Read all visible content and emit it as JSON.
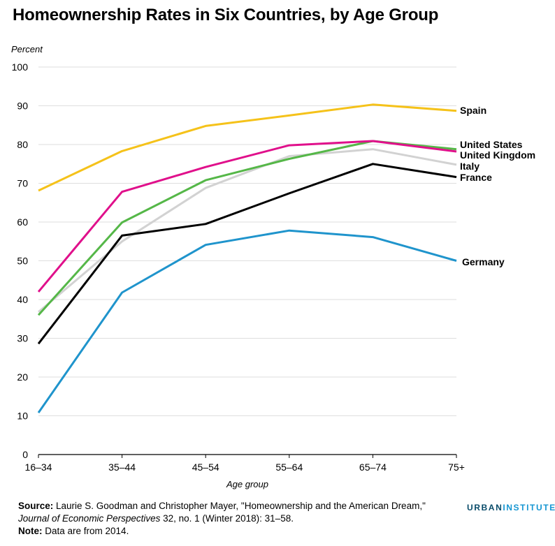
{
  "title": "Homeownership Rates in Six Countries, by Age Group",
  "chart_data": {
    "type": "line",
    "ylabel": "Percent",
    "xlabel": "Age group",
    "categories": [
      "16–34",
      "35–44",
      "45–54",
      "55–64",
      "65–74",
      "75+"
    ],
    "ylim": [
      0,
      100
    ],
    "yticks": [
      0,
      10,
      20,
      30,
      40,
      50,
      60,
      70,
      80,
      90,
      100
    ],
    "grid": true,
    "series": [
      {
        "name": "Germany",
        "color": "#1f94cc",
        "values": [
          10.8,
          41.8,
          54.1,
          57.8,
          56.1,
          50.0
        ]
      },
      {
        "name": "Italy",
        "color": "#d2d2d2",
        "values": [
          36.8,
          55.0,
          68.8,
          77.0,
          78.8,
          74.8
        ]
      },
      {
        "name": "France",
        "color": "#000000",
        "values": [
          28.6,
          56.5,
          59.5,
          67.4,
          75.0,
          71.6
        ]
      },
      {
        "name": "United Kingdom",
        "color": "#55b748",
        "values": [
          36.0,
          59.9,
          70.8,
          76.3,
          80.9,
          78.8
        ]
      },
      {
        "name": "United States",
        "color": "#e0108b",
        "values": [
          42.0,
          67.8,
          74.2,
          79.8,
          80.9,
          78.2
        ]
      },
      {
        "name": "Spain",
        "color": "#f5c21a",
        "values": [
          68.1,
          78.3,
          84.8,
          87.5,
          90.3,
          88.7
        ]
      }
    ]
  },
  "footer": {
    "source_label": "Source:",
    "source_text": " Laurie S. Goodman and Christopher Mayer, \"Homeownership and the American Dream,\"",
    "journal": "Journal of Economic Perspectives",
    "journal_rest": " 32, no. 1 (Winter 2018): 31–58.",
    "note_label": "Note:",
    "note_text": " Data are from 2014."
  },
  "brand": {
    "part1": "URBAN",
    "part2": "INSTITUTE"
  }
}
